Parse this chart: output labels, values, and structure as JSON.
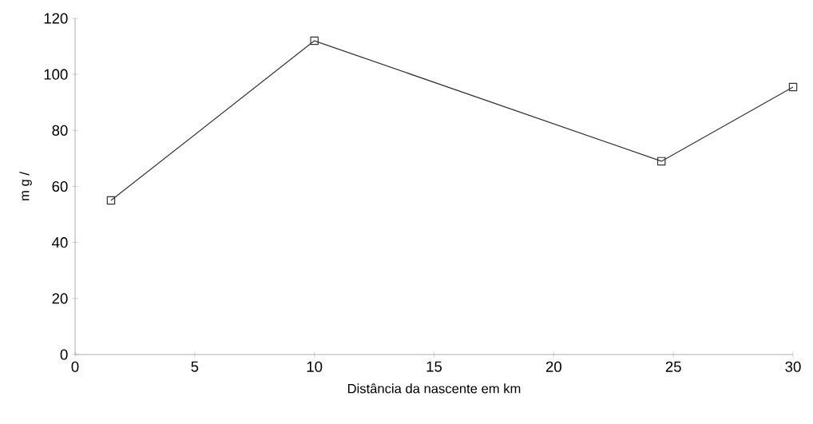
{
  "chart_data": {
    "type": "line",
    "xlabel": "Distância da nascente em km",
    "ylabel": "m g /",
    "x": [
      1.5,
      10,
      24.5,
      30
    ],
    "series": [
      {
        "color": "#333333",
        "values": [
          55,
          112,
          69,
          95.5
        ]
      }
    ],
    "xlim": [
      0,
      30
    ],
    "xticks": [
      0,
      5,
      10,
      15,
      20,
      25,
      30
    ],
    "ylim": [
      0,
      120
    ],
    "yticks": [
      0,
      20,
      40,
      60,
      80,
      100,
      120
    ],
    "marker": "square",
    "line_style": "solid",
    "grid": false
  }
}
